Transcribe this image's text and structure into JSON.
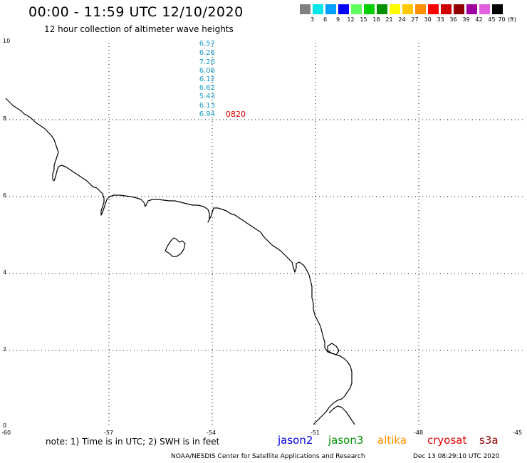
{
  "header": {
    "title": "00:00 - 11:59 UTC 12/10/2020",
    "subtitle": "12 hour collection of altimeter wave heights"
  },
  "legend": {
    "unit": "(ft)",
    "items": [
      {
        "label": "3",
        "color": "#808080"
      },
      {
        "label": "6",
        "color": "#00e8e8"
      },
      {
        "label": "9",
        "color": "#00a0ff"
      },
      {
        "label": "12",
        "color": "#0000ff"
      },
      {
        "label": "15",
        "color": "#60ff60"
      },
      {
        "label": "18",
        "color": "#00d000"
      },
      {
        "label": "21",
        "color": "#009000"
      },
      {
        "label": "24",
        "color": "#ffff00"
      },
      {
        "label": "27",
        "color": "#ffc800"
      },
      {
        "label": "30",
        "color": "#ff9000"
      },
      {
        "label": "33",
        "color": "#ff0000"
      },
      {
        "label": "36",
        "color": "#d00000"
      },
      {
        "label": "39",
        "color": "#900000"
      },
      {
        "label": "42",
        "color": "#a000a0"
      },
      {
        "label": "45",
        "color": "#e060e0"
      },
      {
        "label": "70",
        "color": "#000000"
      }
    ]
  },
  "axes": {
    "lat_labels": [
      "10",
      "8",
      "6",
      "4",
      "2",
      "0"
    ],
    "lon_labels": [
      "-60",
      "-57",
      "-54",
      "-51",
      "-48",
      "-45"
    ]
  },
  "track": {
    "wave_heights": [
      "6.57",
      "6.26",
      "7.20",
      "6.06",
      "6.12",
      "6.62",
      "5.43",
      "6.13",
      "6.94"
    ],
    "pass_time": "0820",
    "pass_time_color": "#e00000",
    "value_color": "#1aa0c8"
  },
  "footer": {
    "note": "note: 1) Time is in UTC; 2) SWH is in feet",
    "satellites": [
      {
        "name": "jason2",
        "color": "#0000e0"
      },
      {
        "name": "jason3",
        "color": "#009000"
      },
      {
        "name": "altika",
        "color": "#ff9000"
      },
      {
        "name": "cryosat",
        "color": "#e00000"
      },
      {
        "name": "s3a",
        "color": "#900000"
      }
    ],
    "credit": "NOAA/NESDIS Center for Satellite Applications and Research",
    "timestamp": "Dec 13 08:29:10 UTC 2020"
  }
}
